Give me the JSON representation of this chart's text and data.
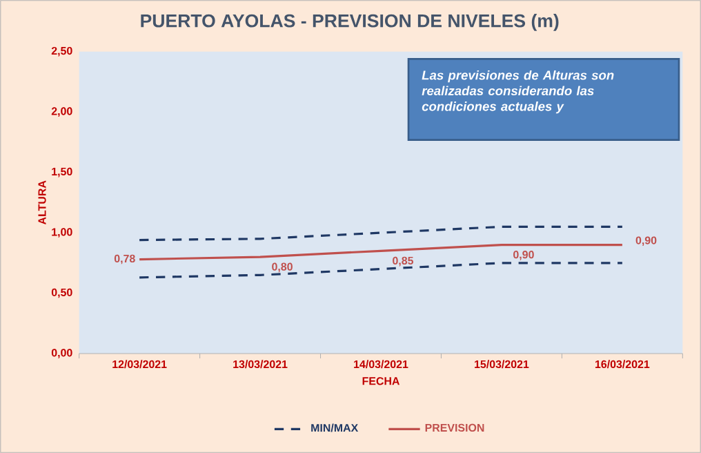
{
  "chart_data": {
    "type": "line",
    "title": "PUERTO AYOLAS - PREVISION DE NIVELES (m)",
    "xlabel": "FECHA",
    "ylabel": "ALTURA",
    "categories": [
      "12/03/2021",
      "13/03/2021",
      "14/03/2021",
      "15/03/2021",
      "16/03/2021"
    ],
    "series": [
      {
        "name": "MIN/MAX",
        "color": "#1f3864",
        "line_style": "dashed",
        "values": [
          0.94,
          0.95,
          1.0,
          1.05,
          1.05
        ]
      },
      {
        "color": "#1f3864",
        "line_style": "dashed",
        "values": [
          0.63,
          0.65,
          0.7,
          0.75,
          0.75
        ]
      },
      {
        "name": "PREVISION",
        "color": "#c0504d",
        "line_style": "solid",
        "values": [
          0.78,
          0.8,
          0.85,
          0.9,
          0.9
        ],
        "value_labels": [
          "0,78",
          "0,80",
          "0,85",
          "0,90",
          "0,90"
        ]
      }
    ],
    "ylim": [
      0,
      2.5
    ],
    "yticks": [
      {
        "value": 0,
        "label": "0,00"
      },
      {
        "value": 0.5,
        "label": "0,50"
      },
      {
        "value": 1,
        "label": "1,00"
      },
      {
        "value": 1.5,
        "label": "1,50"
      },
      {
        "value": 2,
        "label": "2,00"
      },
      {
        "value": 2.5,
        "label": "2,50"
      }
    ],
    "grid": false,
    "legend": "bottom",
    "marker": "none",
    "annotations": [
      "Las previsiones de Alturas son realizadas considerando las condiciones actuales y"
    ]
  }
}
